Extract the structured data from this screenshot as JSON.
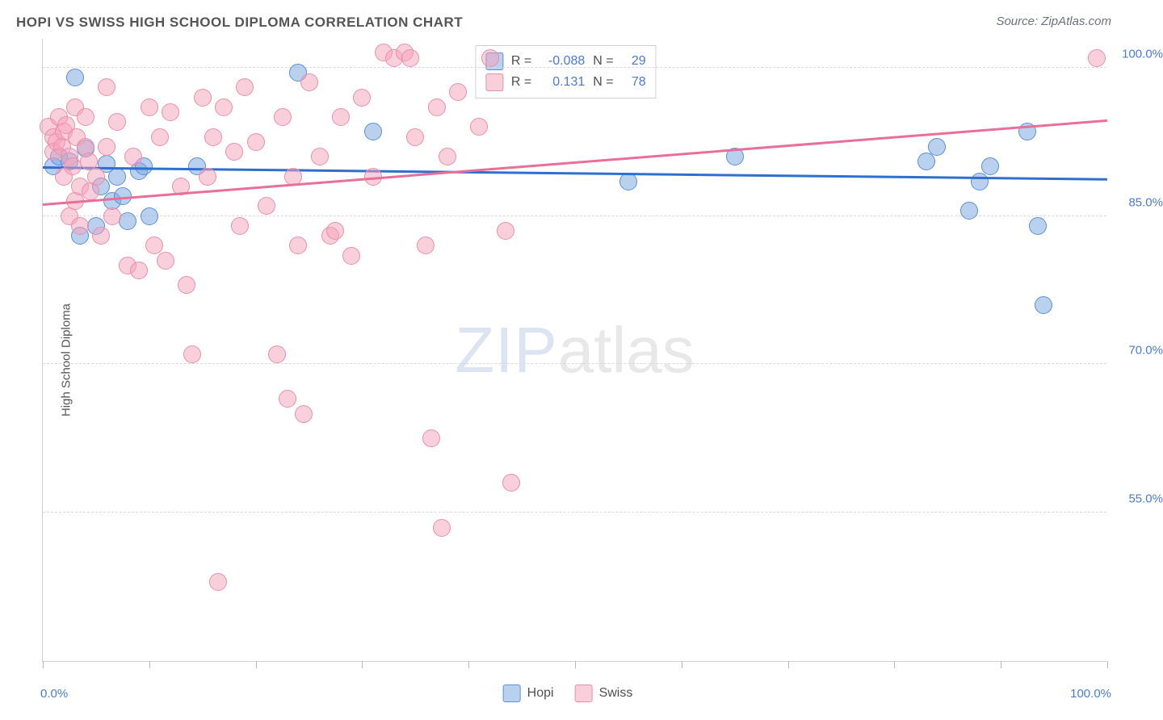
{
  "title": "HOPI VS SWISS HIGH SCHOOL DIPLOMA CORRELATION CHART",
  "source": "Source: ZipAtlas.com",
  "y_axis_label": "High School Diploma",
  "watermark": {
    "part1": "ZIP",
    "part2": "atlas"
  },
  "chart": {
    "type": "scatter",
    "xlim": [
      0,
      100
    ],
    "ylim": [
      40,
      103
    ],
    "x_ticks": [
      0,
      10,
      20,
      30,
      40,
      50,
      60,
      70,
      80,
      90,
      100
    ],
    "y_gridlines": [
      55.0,
      70.0,
      85.0,
      100.0
    ],
    "x_lim_labels": {
      "min": "0.0%",
      "max": "100.0%"
    },
    "y_tick_labels": [
      "55.0%",
      "70.0%",
      "85.0%",
      "100.0%"
    ],
    "background_color": "#ffffff",
    "grid_color": "#d9d9d9",
    "axis_color": "#d0d0d0",
    "tick_label_color": "#4a7bd0",
    "axis_label_color": "#555555",
    "marker_radius": 11,
    "series": [
      {
        "name": "Hopi",
        "fill_color": "rgba(130,170,225,0.55)",
        "stroke_color": "#5b8fd6",
        "trend_color": "#2f6fd0",
        "R": "-0.088",
        "N": "29",
        "trend": {
          "x1": 0,
          "y1": 89.8,
          "x2": 100,
          "y2": 88.6
        },
        "points": [
          [
            1.0,
            90.0
          ],
          [
            1.5,
            91.0
          ],
          [
            2.5,
            90.5
          ],
          [
            3.0,
            99.0
          ],
          [
            3.5,
            83.0
          ],
          [
            4.0,
            91.8
          ],
          [
            5.0,
            84.0
          ],
          [
            5.5,
            88.0
          ],
          [
            6.0,
            90.3
          ],
          [
            6.5,
            86.5
          ],
          [
            7.0,
            89.0
          ],
          [
            7.5,
            87.0
          ],
          [
            8.0,
            84.5
          ],
          [
            9.0,
            89.5
          ],
          [
            9.5,
            90.0
          ],
          [
            10.0,
            85.0
          ],
          [
            14.5,
            90.0
          ],
          [
            24.0,
            99.5
          ],
          [
            31.0,
            93.5
          ],
          [
            55.0,
            88.5
          ],
          [
            65.0,
            91.0
          ],
          [
            83.0,
            90.5
          ],
          [
            84.0,
            92.0
          ],
          [
            87.0,
            85.5
          ],
          [
            88.0,
            88.5
          ],
          [
            89.0,
            90.0
          ],
          [
            92.5,
            93.5
          ],
          [
            93.5,
            84.0
          ],
          [
            94.0,
            76.0
          ]
        ]
      },
      {
        "name": "Swiss",
        "fill_color": "rgba(245,160,185,0.50)",
        "stroke_color": "#e890aa",
        "trend_color": "#e86f98",
        "R": "0.131",
        "N": "78",
        "trend": {
          "x1": 0,
          "y1": 86.0,
          "x2": 100,
          "y2": 94.5
        },
        "points": [
          [
            0.5,
            94.0
          ],
          [
            1.0,
            93.0
          ],
          [
            1.0,
            91.5
          ],
          [
            1.3,
            92.5
          ],
          [
            1.5,
            95.0
          ],
          [
            1.8,
            92.0
          ],
          [
            2.0,
            93.5
          ],
          [
            2.0,
            89.0
          ],
          [
            2.2,
            94.2
          ],
          [
            2.5,
            91.0
          ],
          [
            2.5,
            85.0
          ],
          [
            2.8,
            90.0
          ],
          [
            3.0,
            96.0
          ],
          [
            3.0,
            86.5
          ],
          [
            3.2,
            93.0
          ],
          [
            3.5,
            88.0
          ],
          [
            3.5,
            84.0
          ],
          [
            4.0,
            92.0
          ],
          [
            4.0,
            95.0
          ],
          [
            4.3,
            90.5
          ],
          [
            4.5,
            87.5
          ],
          [
            5.0,
            89.0
          ],
          [
            5.5,
            83.0
          ],
          [
            6.0,
            92.0
          ],
          [
            6.0,
            98.0
          ],
          [
            6.5,
            85.0
          ],
          [
            7.0,
            94.5
          ],
          [
            8.0,
            80.0
          ],
          [
            8.5,
            91.0
          ],
          [
            9.0,
            79.5
          ],
          [
            10.0,
            96.0
          ],
          [
            10.5,
            82.0
          ],
          [
            11.0,
            93.0
          ],
          [
            11.5,
            80.5
          ],
          [
            12.0,
            95.5
          ],
          [
            13.0,
            88.0
          ],
          [
            13.5,
            78.0
          ],
          [
            14.0,
            71.0
          ],
          [
            15.0,
            97.0
          ],
          [
            15.5,
            89.0
          ],
          [
            16.0,
            93.0
          ],
          [
            16.5,
            48.0
          ],
          [
            17.0,
            96.0
          ],
          [
            18.0,
            91.5
          ],
          [
            18.5,
            84.0
          ],
          [
            19.0,
            98.0
          ],
          [
            20.0,
            92.5
          ],
          [
            21.0,
            86.0
          ],
          [
            22.0,
            71.0
          ],
          [
            22.5,
            95.0
          ],
          [
            23.0,
            66.5
          ],
          [
            23.5,
            89.0
          ],
          [
            24.0,
            82.0
          ],
          [
            24.5,
            65.0
          ],
          [
            25.0,
            98.5
          ],
          [
            26.0,
            91.0
          ],
          [
            27.0,
            83.0
          ],
          [
            27.5,
            83.5
          ],
          [
            28.0,
            95.0
          ],
          [
            29.0,
            81.0
          ],
          [
            30.0,
            97.0
          ],
          [
            31.0,
            89.0
          ],
          [
            32.0,
            101.5
          ],
          [
            33.0,
            101.0
          ],
          [
            34.0,
            101.5
          ],
          [
            34.5,
            101.0
          ],
          [
            35.0,
            93.0
          ],
          [
            36.0,
            82.0
          ],
          [
            36.5,
            62.5
          ],
          [
            37.0,
            96.0
          ],
          [
            37.5,
            53.5
          ],
          [
            38.0,
            91.0
          ],
          [
            39.0,
            97.5
          ],
          [
            41.0,
            94.0
          ],
          [
            42.0,
            101.0
          ],
          [
            43.5,
            83.5
          ],
          [
            44.0,
            58.0
          ],
          [
            99.0,
            101.0
          ]
        ]
      }
    ]
  },
  "stats_legend": {
    "rows": [
      {
        "swatch_fill": "rgba(130,170,225,0.55)",
        "swatch_stroke": "#5b8fd6",
        "r_label": "R =",
        "r_val": "-0.088",
        "n_label": "N =",
        "n_val": "29"
      },
      {
        "swatch_fill": "rgba(245,160,185,0.50)",
        "swatch_stroke": "#e890aa",
        "r_label": "R =",
        "r_val": "0.131",
        "n_label": "N =",
        "n_val": "78"
      }
    ]
  },
  "bottom_legend": {
    "items": [
      {
        "swatch_fill": "rgba(130,170,225,0.55)",
        "swatch_stroke": "#5b8fd6",
        "label": "Hopi"
      },
      {
        "swatch_fill": "rgba(245,160,185,0.50)",
        "swatch_stroke": "#e890aa",
        "label": "Swiss"
      }
    ]
  }
}
